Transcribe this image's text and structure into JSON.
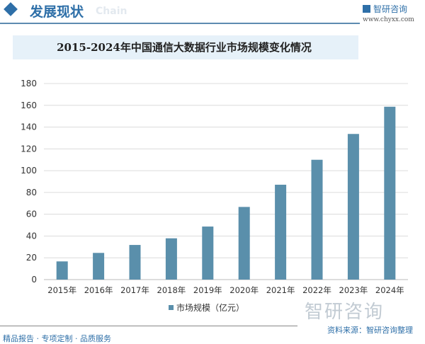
{
  "header": {
    "title": "发展现状",
    "ghost_text": "Chain",
    "logo_text": "智研咨询",
    "url": "www.chyxx.com"
  },
  "footer": {
    "source": "资料来源：智研咨询整理",
    "tagline": "精品报告 · 专项定制 · 品质服务",
    "watermark": "智研咨询"
  },
  "colors": {
    "bar": "#5a8fab",
    "accent": "#2e6fa8",
    "grid": "#dcdcdc"
  },
  "chart_data": {
    "type": "bar",
    "title": "2015-2024年中国通信大数据行业市场规模变化情况",
    "categories": [
      "2015年",
      "2016年",
      "2017年",
      "2018年",
      "2019年",
      "2020年",
      "2021年",
      "2022年",
      "2023年",
      "2024年"
    ],
    "series": [
      {
        "name": "市场规模（亿元）",
        "values": [
          16.7,
          24.5,
          31.8,
          37.9,
          48.7,
          66.7,
          87.1,
          110,
          133.7,
          158.7
        ]
      }
    ],
    "ylim": [
      0,
      180
    ],
    "yticks": [
      0,
      20,
      40,
      60,
      80,
      100,
      120,
      140,
      160,
      180
    ],
    "grid": true,
    "legend": "bottom"
  }
}
